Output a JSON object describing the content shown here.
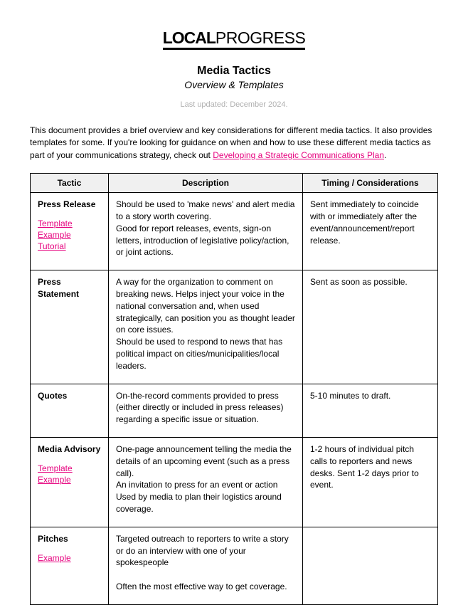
{
  "logo": {
    "part1": "LOCAL",
    "part2": "PROGRESS"
  },
  "title": "Media Tactics",
  "subtitle": "Overview & Templates",
  "updated": "Last updated: December 2024.",
  "intro": {
    "text1": "This document provides a brief overview and key considerations for different media tactics. It also provides templates for some. If you're looking for guidance on when and how to use these different media tactics as part of your communications strategy, check out ",
    "link": "Developing a Strategic Communications Plan",
    "text2": "."
  },
  "headers": {
    "c1": "Tactic",
    "c2": "Description",
    "c3": "Timing / Considerations"
  },
  "rows": [
    {
      "name": "Press Release",
      "links": [
        "Template",
        "Example",
        "Tutorial"
      ],
      "desc": "Should be used to 'make news' and alert media to a story worth covering.\nGood for report releases, events, sign-on letters, introduction of legislative policy/action, or joint actions.",
      "timing": "Sent immediately to coincide with or immediately after the event/announcement/report release."
    },
    {
      "name": "Press Statement",
      "links": [],
      "desc": "A way for the organization to comment on breaking news. Helps inject your voice in the national conversation and, when used strategically, can position you as thought leader on core issues.\nShould be used to respond to news that has political impact on cities/municipalities/local leaders.",
      "timing": "Sent as soon as possible."
    },
    {
      "name": "Quotes",
      "links": [],
      "desc": "On-the-record comments provided to press (either directly or included in press releases) regarding a specific issue or situation.",
      "timing": "5-10 minutes to draft."
    },
    {
      "name": "Media Advisory",
      "links": [
        "Template",
        "Example"
      ],
      "desc": "One-page announcement telling the media the details of an upcoming event (such as a press call).\nAn invitation to press for an event or action\nUsed by media to plan their logistics around coverage.",
      "timing": "1-2 hours of individual pitch calls to reporters and news desks. Sent 1-2 days prior to event."
    },
    {
      "name": "Pitches",
      "links": [
        "Example"
      ],
      "desc": "Targeted outreach to reporters to write a story or do an interview with one of your spokespeople\n\nOften the most effective way to get coverage.",
      "timing": ""
    }
  ]
}
